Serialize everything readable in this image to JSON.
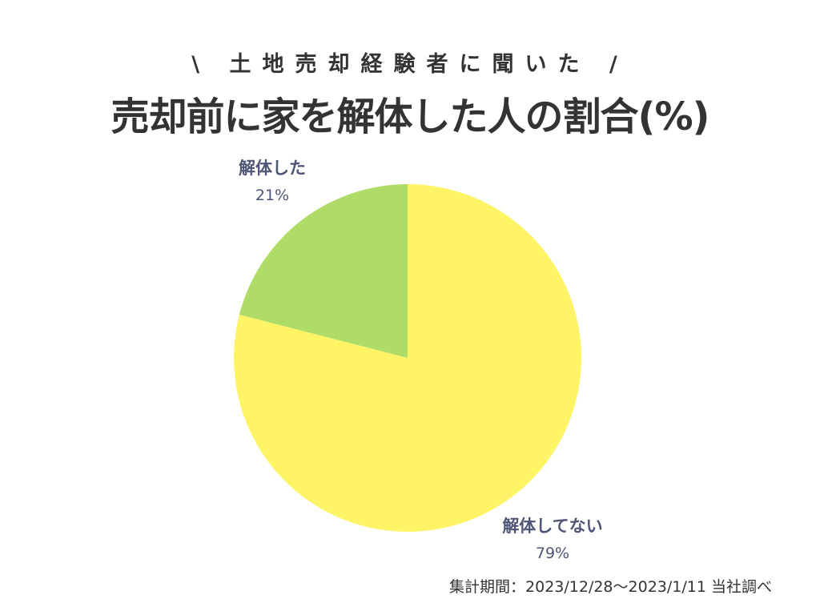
{
  "header": {
    "subtitle": "\\ 土地売却経験者に聞いた /",
    "title": "売却前に家を解体した人の割合(%)"
  },
  "chart_data": {
    "type": "pie",
    "title": "売却前に家を解体した人の割合(%)",
    "subtitle": "\\ 土地売却経験者に聞いた /",
    "slices": [
      {
        "label": "解体した",
        "value": 21,
        "value_label": "21%",
        "color": "#afdc66"
      },
      {
        "label": "解体してない",
        "value": 79,
        "value_label": "79%",
        "color": "#fff466"
      }
    ],
    "start": "12 o'clock",
    "direction": "counterclockwise",
    "legend": "none"
  },
  "footer": {
    "note": "集計期間：2023/12/28〜2023/1/11 当社調べ"
  }
}
